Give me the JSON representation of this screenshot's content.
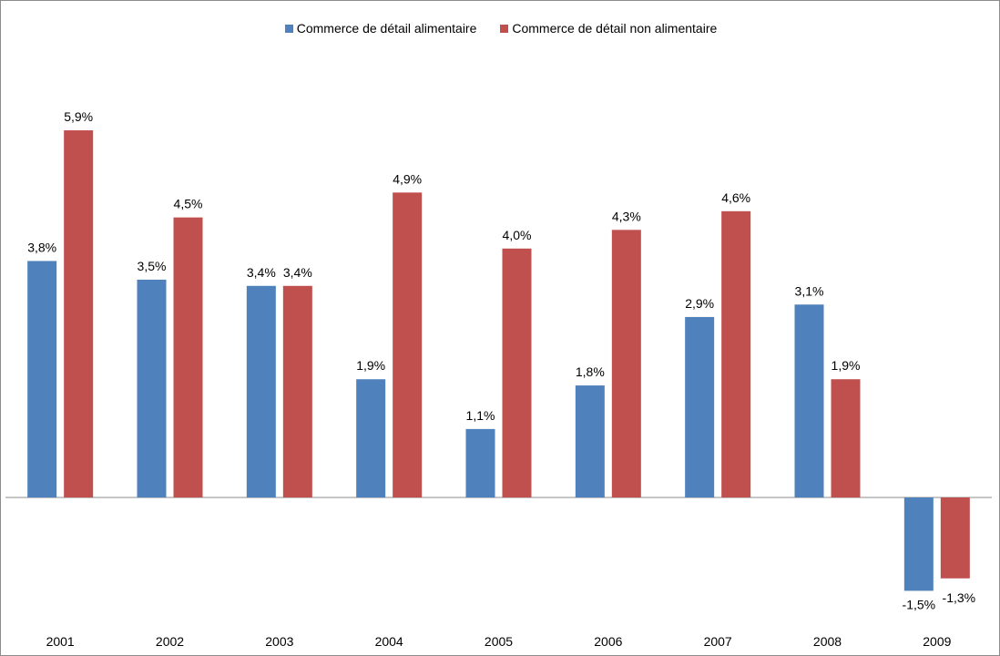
{
  "chart_data": {
    "type": "bar",
    "categories": [
      "2001",
      "2002",
      "2003",
      "2004",
      "2005",
      "2006",
      "2007",
      "2008",
      "2009"
    ],
    "series": [
      {
        "name": "Commerce de détail alimentaire",
        "color": "#4f81bd",
        "values": [
          3.8,
          3.5,
          3.4,
          1.9,
          1.1,
          1.8,
          2.9,
          3.1,
          -1.5
        ],
        "labels": [
          "3,8%",
          "3,5%",
          "3,4%",
          "1,9%",
          "1,1%",
          "1,8%",
          "2,9%",
          "3,1%",
          "-1,5%"
        ]
      },
      {
        "name": "Commerce de détail non alimentaire",
        "color": "#c0504d",
        "values": [
          5.9,
          4.5,
          3.4,
          4.9,
          4.0,
          4.3,
          4.6,
          1.9,
          -1.3
        ],
        "labels": [
          "5,9%",
          "4,5%",
          "3,4%",
          "4,9%",
          "4,0%",
          "4,3%",
          "4,6%",
          "1,9%",
          "-1,3%"
        ]
      }
    ],
    "title": "",
    "xlabel": "",
    "ylabel": "",
    "legend_position": "top",
    "grid": false,
    "axis_color": "#8c8c8c"
  }
}
